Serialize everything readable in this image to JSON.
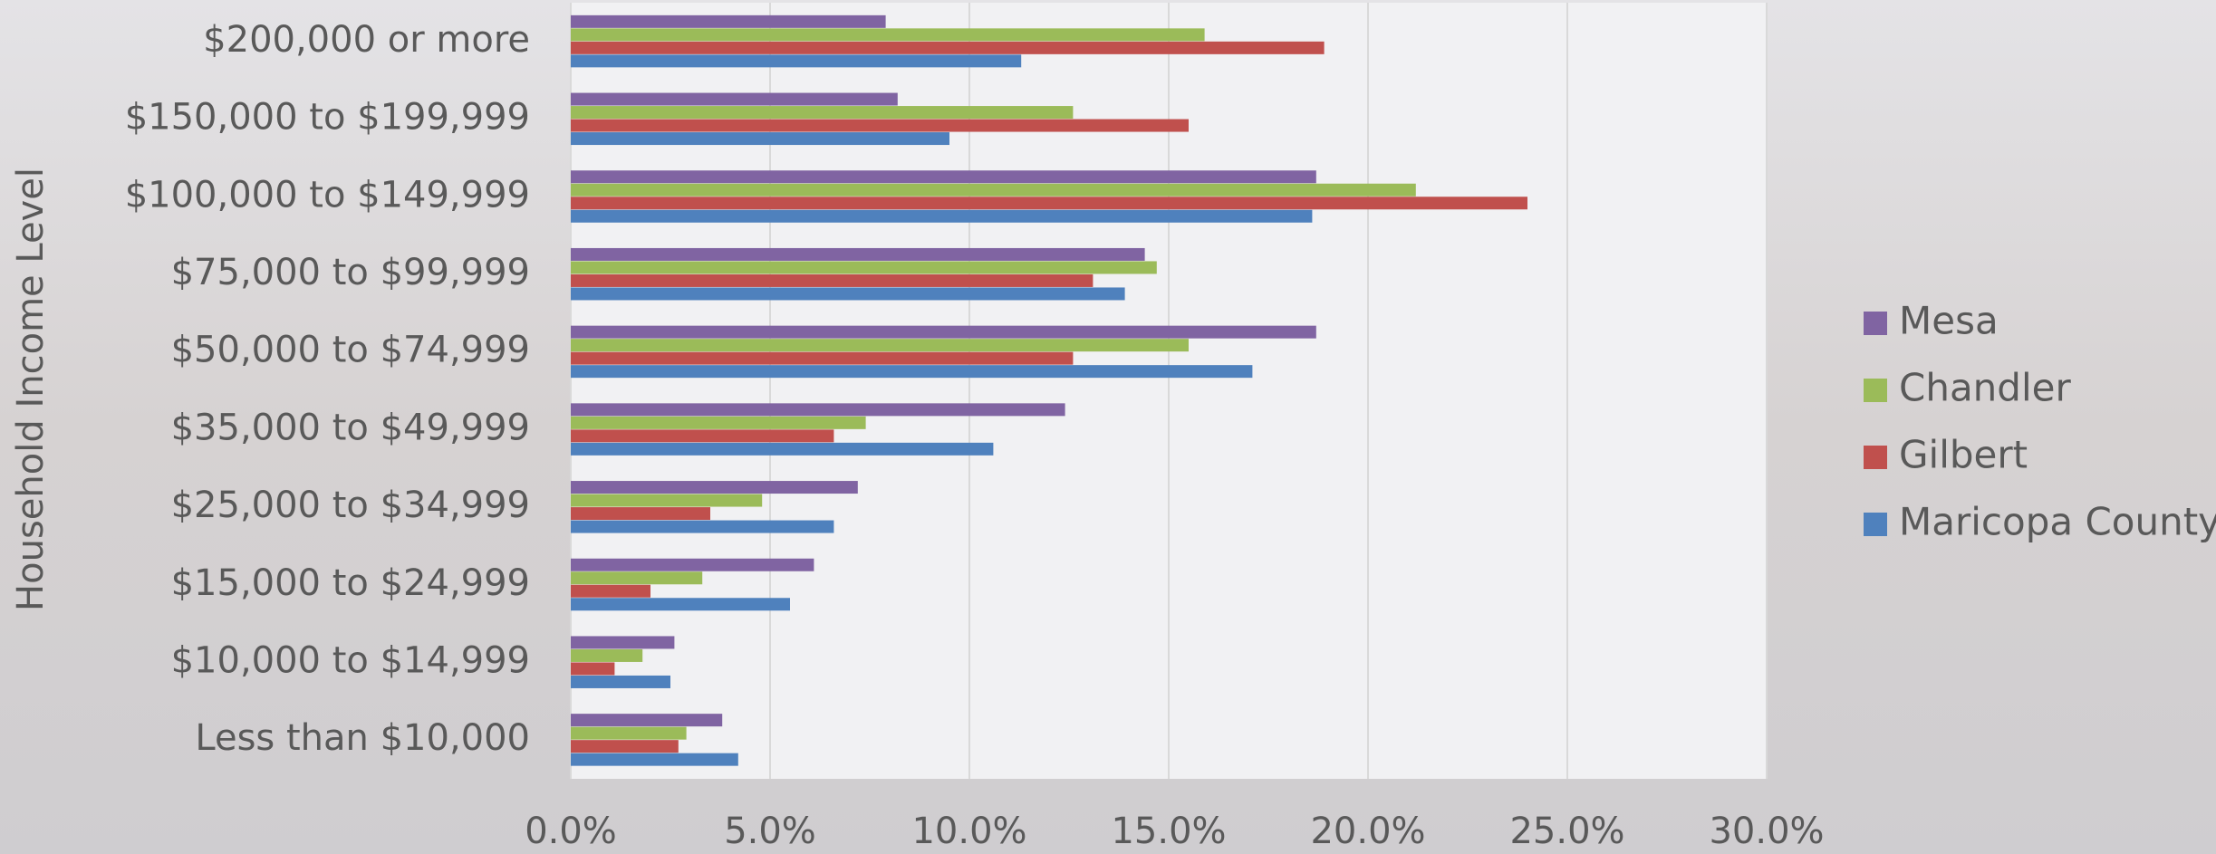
{
  "chart_data": {
    "type": "hbar",
    "y_label": "Household Income Level",
    "categories": [
      "$200,000 or more",
      "$150,000 to $199,999",
      "$100,000 to $149,999",
      "$75,000 to $99,999",
      "$50,000 to $74,999",
      "$35,000 to $49,999",
      "$25,000 to $34,999",
      "$15,000 to $24,999",
      "$10,000 to $14,999",
      "Less than $10,000"
    ],
    "series": [
      {
        "name": "Mesa",
        "color": "#8064a2",
        "values": [
          7.9,
          8.2,
          18.7,
          14.4,
          18.7,
          12.4,
          7.2,
          6.1,
          2.6,
          3.8
        ]
      },
      {
        "name": "Chandler",
        "color": "#9bbb59",
        "values": [
          15.9,
          12.6,
          21.2,
          14.7,
          15.5,
          7.4,
          4.8,
          3.3,
          1.8,
          2.9
        ]
      },
      {
        "name": "Gilbert",
        "color": "#c0504d",
        "values": [
          18.9,
          15.5,
          24.0,
          13.1,
          12.6,
          6.6,
          3.5,
          2.0,
          1.1,
          2.7
        ]
      },
      {
        "name": "Maricopa County",
        "color": "#4f81bd",
        "values": [
          11.3,
          9.5,
          18.6,
          13.9,
          17.1,
          10.6,
          6.6,
          5.5,
          2.5,
          4.2
        ]
      }
    ],
    "xlim": [
      0,
      30
    ],
    "xticks": [
      {
        "value": 0,
        "label": "0.0%"
      },
      {
        "value": 5,
        "label": "5.0%"
      },
      {
        "value": 10,
        "label": "10.0%"
      },
      {
        "value": 15,
        "label": "15.0%"
      },
      {
        "value": 20,
        "label": "20.0%"
      },
      {
        "value": 25,
        "label": "25.0%"
      },
      {
        "value": 30,
        "label": "30.0%"
      }
    ],
    "grid": true,
    "legend": "right"
  }
}
